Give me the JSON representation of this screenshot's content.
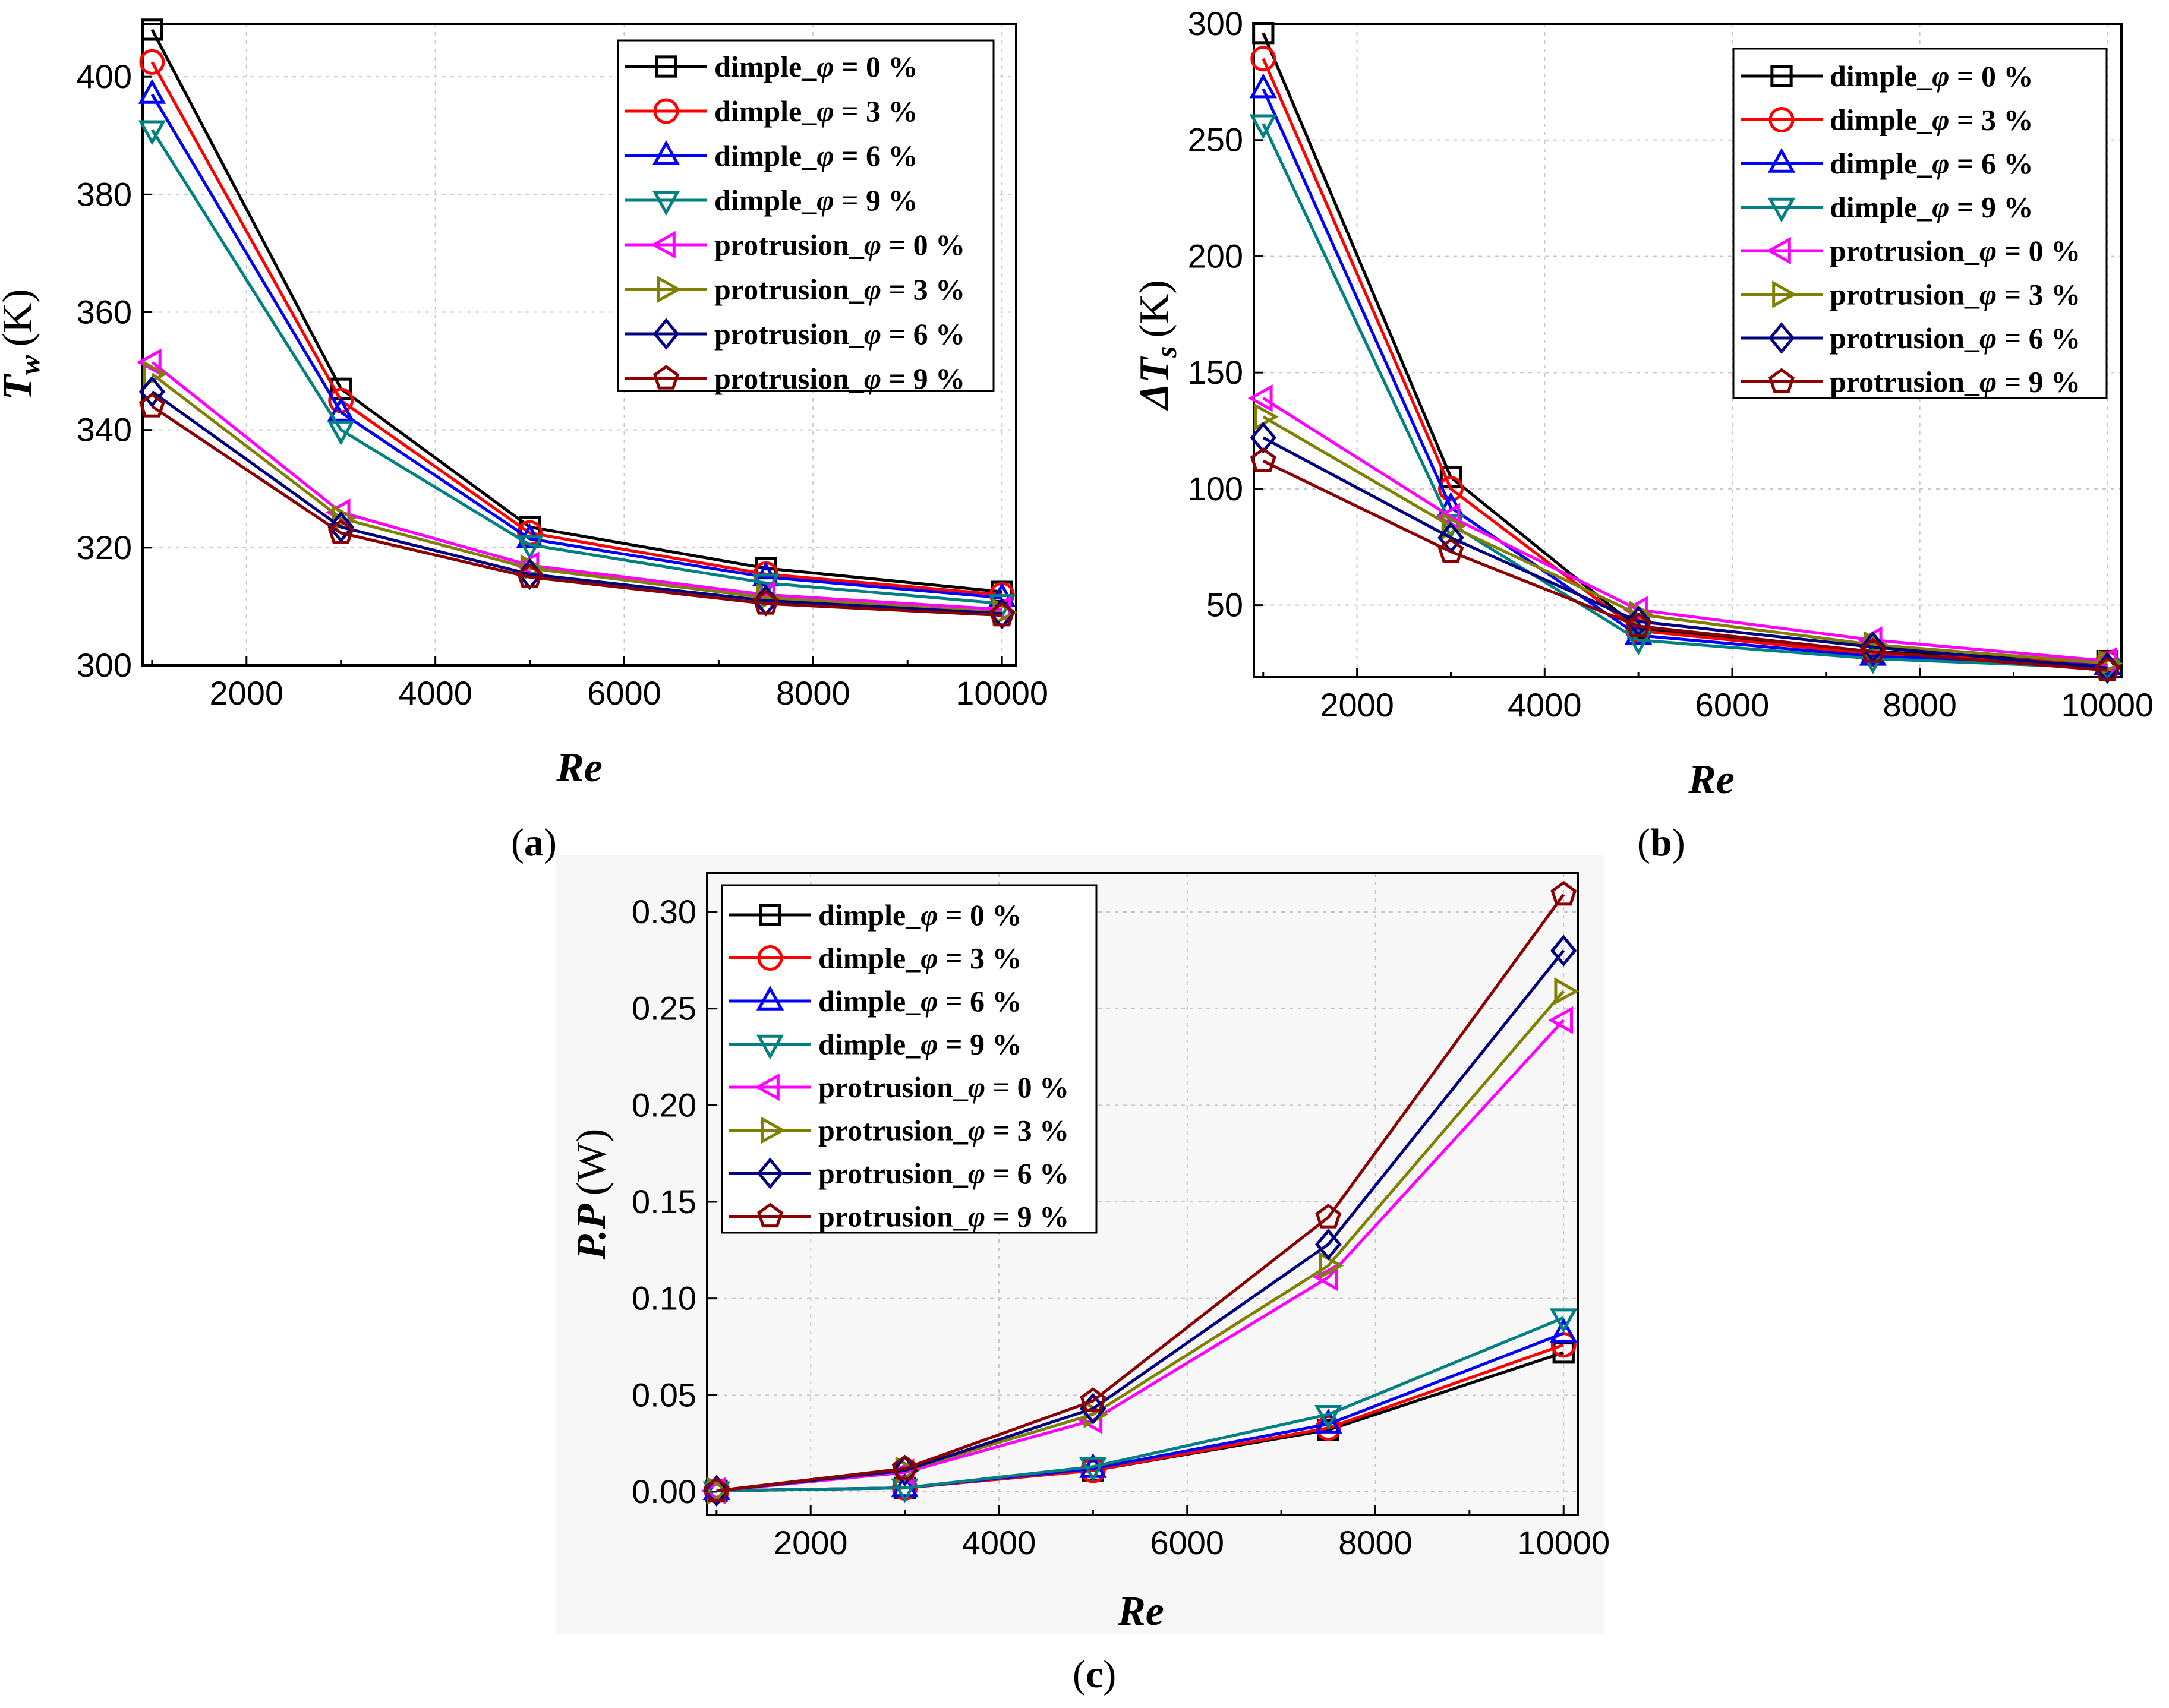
{
  "colors": {
    "series": [
      "#000000",
      "#ff0000",
      "#0000ff",
      "#008080",
      "#ff00ff",
      "#808000",
      "#000080",
      "#8b0000"
    ],
    "grid": "#c8c8c8",
    "panel_c_background": "#f7f7f7"
  },
  "markers": [
    "square",
    "circle",
    "triangle-up",
    "triangle-down",
    "triangle-left",
    "triangle-right",
    "diamond",
    "pentagon"
  ],
  "legend": [
    {
      "prefix": "dimple_",
      "symbol": "φ",
      "suffix": " = 0 %"
    },
    {
      "prefix": "dimple_",
      "symbol": "φ",
      "suffix": " = 3 %"
    },
    {
      "prefix": "dimple_",
      "symbol": "φ",
      "suffix": " = 6 %"
    },
    {
      "prefix": "dimple_",
      "symbol": "φ",
      "suffix": " = 9 %"
    },
    {
      "prefix": "protrusion_",
      "symbol": "φ",
      "suffix": " = 0 %"
    },
    {
      "prefix": "protrusion_",
      "symbol": "φ",
      "suffix": " = 3 %"
    },
    {
      "prefix": "protrusion_",
      "symbol": "φ",
      "suffix": " = 6 %"
    },
    {
      "prefix": "protrusion_",
      "symbol": "φ",
      "suffix": " = 9 %"
    }
  ],
  "chart_data": [
    {
      "id": "a",
      "type": "line",
      "panel_label": "a",
      "xlabel": "Re",
      "ylabel": {
        "main": "T",
        "sub": "w",
        "unit": "(K)"
      },
      "x": [
        1000,
        3000,
        5000,
        7500,
        10000
      ],
      "xlim": [
        900,
        10150
      ],
      "ylim": [
        300,
        409
      ],
      "xticks": [
        2000,
        4000,
        6000,
        8000,
        10000
      ],
      "yticks": [
        300,
        320,
        340,
        360,
        380,
        400
      ],
      "grid": true,
      "legend_position": "top-right",
      "series": [
        {
          "name": "dimple_φ = 0 %",
          "values": [
            408,
            347,
            323.5,
            316.5,
            312.5
          ]
        },
        {
          "name": "dimple_φ = 3 %",
          "values": [
            402.5,
            345,
            322.5,
            315.5,
            312
          ]
        },
        {
          "name": "dimple_φ = 6 %",
          "values": [
            397,
            343,
            321.5,
            315,
            311.5
          ]
        },
        {
          "name": "dimple_φ = 9 %",
          "values": [
            391,
            340,
            320.5,
            314,
            310.5
          ]
        },
        {
          "name": "protrusion_φ = 0 %",
          "values": [
            351.5,
            326,
            317,
            312,
            309.5
          ]
        },
        {
          "name": "protrusion_φ = 3 %",
          "values": [
            349.5,
            325,
            316.5,
            311.5,
            309
          ]
        },
        {
          "name": "protrusion_φ = 6 %",
          "values": [
            346.5,
            323.5,
            315.5,
            311,
            308.8
          ]
        },
        {
          "name": "protrusion_φ = 9 %",
          "values": [
            344,
            322.5,
            315,
            310.5,
            308.5
          ]
        }
      ]
    },
    {
      "id": "b",
      "type": "line",
      "panel_label": "b",
      "xlabel": "Re",
      "ylabel": {
        "main": "ΔT",
        "sub": "s",
        "unit": "(K)"
      },
      "x": [
        1000,
        3000,
        5000,
        7500,
        10000
      ],
      "xlim": [
        900,
        10150
      ],
      "ylim": [
        19,
        300
      ],
      "xticks": [
        2000,
        4000,
        6000,
        8000,
        10000
      ],
      "yticks": [
        50,
        100,
        150,
        200,
        250,
        300
      ],
      "grid": true,
      "legend_position": "top-right",
      "series": [
        {
          "name": "dimple_φ = 0 %",
          "values": [
            296,
            105,
            40,
            30,
            26
          ]
        },
        {
          "name": "dimple_φ = 3 %",
          "values": [
            285,
            100,
            39,
            29,
            25
          ]
        },
        {
          "name": "dimple_φ = 6 %",
          "values": [
            272,
            92,
            37,
            28,
            24
          ]
        },
        {
          "name": "dimple_φ = 9 %",
          "values": [
            257,
            85,
            35,
            27,
            23
          ]
        },
        {
          "name": "protrusion_φ = 0 %",
          "values": [
            139,
            88,
            48,
            35,
            26
          ]
        },
        {
          "name": "protrusion_φ = 3 %",
          "values": [
            131,
            84,
            46,
            33,
            25
          ]
        },
        {
          "name": "protrusion_φ = 6 %",
          "values": [
            122,
            79,
            43,
            32,
            23
          ]
        },
        {
          "name": "protrusion_φ = 9 %",
          "values": [
            112,
            73,
            41,
            30,
            22
          ]
        }
      ]
    },
    {
      "id": "c",
      "type": "line",
      "panel_label": "c",
      "xlabel": "Re",
      "ylabel": {
        "main": "P.P",
        "sub": "",
        "unit": "(W)"
      },
      "x": [
        1000,
        3000,
        5000,
        7500,
        10000
      ],
      "xlim": [
        900,
        10150
      ],
      "ylim": [
        -0.012,
        0.32
      ],
      "xticks": [
        2000,
        4000,
        6000,
        8000,
        10000
      ],
      "yticks": [
        0.0,
        0.05,
        0.1,
        0.15,
        0.2,
        0.25,
        0.3
      ],
      "ytick_labels": [
        "0.00",
        "0.05",
        "0.10",
        "0.15",
        "0.20",
        "0.25",
        "0.30"
      ],
      "grid": true,
      "legend_position": "top-left",
      "series": [
        {
          "name": "dimple_φ = 0 %",
          "values": [
            0.0005,
            0.002,
            0.011,
            0.032,
            0.072
          ]
        },
        {
          "name": "dimple_φ = 3 %",
          "values": [
            0.0005,
            0.002,
            0.011,
            0.033,
            0.076
          ]
        },
        {
          "name": "dimple_φ = 6 %",
          "values": [
            0.0005,
            0.002,
            0.012,
            0.035,
            0.082
          ]
        },
        {
          "name": "dimple_φ = 9 %",
          "values": [
            0.0005,
            0.002,
            0.013,
            0.04,
            0.09
          ]
        },
        {
          "name": "protrusion_φ = 0 %",
          "values": [
            0.0005,
            0.01,
            0.037,
            0.111,
            0.244
          ]
        },
        {
          "name": "protrusion_φ = 3 %",
          "values": [
            0.0005,
            0.011,
            0.04,
            0.117,
            0.259
          ]
        },
        {
          "name": "protrusion_φ = 6 %",
          "values": [
            0.0005,
            0.011,
            0.043,
            0.128,
            0.28
          ]
        },
        {
          "name": "protrusion_φ = 9 %",
          "values": [
            0.0005,
            0.012,
            0.047,
            0.142,
            0.309
          ]
        }
      ]
    }
  ]
}
